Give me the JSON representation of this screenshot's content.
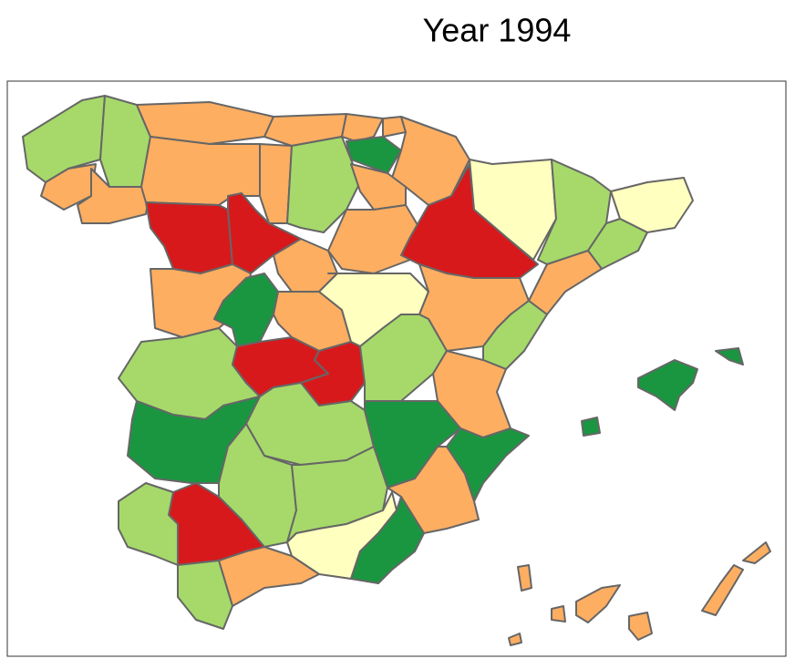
{
  "title": "Year 1994"
}
